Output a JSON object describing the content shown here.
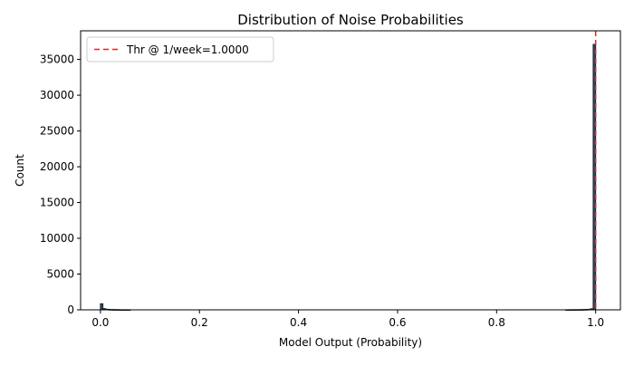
{
  "chart_data": {
    "type": "bar",
    "title": "Distribution of Noise Probabilities",
    "xlabel": "Model Output (Probability)",
    "ylabel": "Count",
    "xlim": [
      -0.04,
      1.05
    ],
    "ylim": [
      0,
      39000
    ],
    "xticks": [
      0.0,
      0.2,
      0.4,
      0.6,
      0.8,
      1.0
    ],
    "xtick_labels": [
      "0.0",
      "0.2",
      "0.4",
      "0.6",
      "0.8",
      "1.0"
    ],
    "yticks": [
      0,
      5000,
      10000,
      15000,
      20000,
      25000,
      30000,
      35000
    ],
    "ytick_labels": [
      "0",
      "5000",
      "10000",
      "15000",
      "20000",
      "25000",
      "30000",
      "35000"
    ],
    "grid": false,
    "bin_width": 0.005,
    "bars": [
      {
        "x": 0.0,
        "value": 850
      },
      {
        "x": 0.005,
        "value": 180
      },
      {
        "x": 0.01,
        "value": 90
      },
      {
        "x": 0.015,
        "value": 60
      },
      {
        "x": 0.02,
        "value": 40
      },
      {
        "x": 0.025,
        "value": 30
      },
      {
        "x": 0.03,
        "value": 25
      },
      {
        "x": 0.035,
        "value": 20
      },
      {
        "x": 0.04,
        "value": 10
      },
      {
        "x": 0.045,
        "value": 8
      },
      {
        "x": 0.05,
        "value": 12
      },
      {
        "x": 0.055,
        "value": 6
      },
      {
        "x": 0.94,
        "value": 10
      },
      {
        "x": 0.945,
        "value": 12
      },
      {
        "x": 0.95,
        "value": 15
      },
      {
        "x": 0.955,
        "value": 18
      },
      {
        "x": 0.96,
        "value": 20
      },
      {
        "x": 0.965,
        "value": 25
      },
      {
        "x": 0.97,
        "value": 30
      },
      {
        "x": 0.975,
        "value": 40
      },
      {
        "x": 0.98,
        "value": 55
      },
      {
        "x": 0.985,
        "value": 80
      },
      {
        "x": 0.99,
        "value": 150
      },
      {
        "x": 0.995,
        "value": 37100
      }
    ],
    "threshold": {
      "x": 1.0,
      "label": "Thr @ 1/week=1.0000",
      "color": "#d62728"
    },
    "legend_placement": "top-left",
    "bar_color": "#1f4e79",
    "bar_edge_color": "#222222"
  }
}
